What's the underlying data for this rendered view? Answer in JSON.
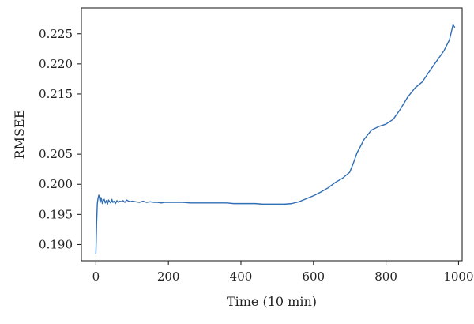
{
  "chart_data": {
    "type": "line",
    "title": "",
    "xlabel": "Time (10 min)",
    "ylabel": "RMSEE",
    "xlim": [
      -40,
      1010
    ],
    "ylim": [
      0.1873,
      0.2293
    ],
    "x_ticks": [
      0,
      200,
      400,
      600,
      800,
      1000
    ],
    "x_tick_labels": [
      "0",
      "200",
      "400",
      "600",
      "800",
      "1000"
    ],
    "y_ticks": [
      0.19,
      0.195,
      0.2,
      0.205,
      0.215,
      0.22,
      0.225
    ],
    "y_tick_labels": [
      "0.190",
      "0.195",
      "0.200",
      "0.205",
      "0.215",
      "0.220",
      "0.225"
    ],
    "grid": false,
    "legend": "none",
    "series": [
      {
        "color": "#2f6db5",
        "points": [
          [
            0,
            0.1884
          ],
          [
            2,
            0.1935
          ],
          [
            4,
            0.1968
          ],
          [
            6,
            0.1977
          ],
          [
            8,
            0.1982
          ],
          [
            10,
            0.1978
          ],
          [
            12,
            0.197
          ],
          [
            14,
            0.1978
          ],
          [
            16,
            0.1974
          ],
          [
            18,
            0.1968
          ],
          [
            20,
            0.1973
          ],
          [
            23,
            0.1975
          ],
          [
            26,
            0.1969
          ],
          [
            29,
            0.1973
          ],
          [
            32,
            0.1967
          ],
          [
            35,
            0.1974
          ],
          [
            38,
            0.1971
          ],
          [
            41,
            0.1969
          ],
          [
            44,
            0.1975
          ],
          [
            47,
            0.197
          ],
          [
            50,
            0.1972
          ],
          [
            54,
            0.1968
          ],
          [
            58,
            0.1973
          ],
          [
            62,
            0.197
          ],
          [
            66,
            0.1972
          ],
          [
            70,
            0.1971
          ],
          [
            75,
            0.1973
          ],
          [
            80,
            0.197
          ],
          [
            85,
            0.1974
          ],
          [
            90,
            0.1972
          ],
          [
            95,
            0.1971
          ],
          [
            100,
            0.1972
          ],
          [
            110,
            0.1971
          ],
          [
            120,
            0.197
          ],
          [
            130,
            0.1972
          ],
          [
            140,
            0.197
          ],
          [
            150,
            0.1971
          ],
          [
            160,
            0.197
          ],
          [
            170,
            0.197
          ],
          [
            180,
            0.1969
          ],
          [
            190,
            0.197
          ],
          [
            200,
            0.197
          ],
          [
            220,
            0.197
          ],
          [
            240,
            0.197
          ],
          [
            260,
            0.1969
          ],
          [
            280,
            0.1969
          ],
          [
            300,
            0.1969
          ],
          [
            320,
            0.1969
          ],
          [
            340,
            0.1969
          ],
          [
            360,
            0.1969
          ],
          [
            380,
            0.1968
          ],
          [
            400,
            0.1968
          ],
          [
            420,
            0.1968
          ],
          [
            440,
            0.1968
          ],
          [
            460,
            0.1967
          ],
          [
            480,
            0.1967
          ],
          [
            500,
            0.1967
          ],
          [
            520,
            0.1967
          ],
          [
            540,
            0.1968
          ],
          [
            560,
            0.1971
          ],
          [
            580,
            0.1976
          ],
          [
            600,
            0.1981
          ],
          [
            620,
            0.1987
          ],
          [
            640,
            0.1994
          ],
          [
            660,
            0.2003
          ],
          [
            680,
            0.201
          ],
          [
            700,
            0.202
          ],
          [
            710,
            0.2035
          ],
          [
            720,
            0.2052
          ],
          [
            740,
            0.2075
          ],
          [
            760,
            0.209
          ],
          [
            780,
            0.2096
          ],
          [
            800,
            0.21
          ],
          [
            820,
            0.2108
          ],
          [
            840,
            0.2125
          ],
          [
            860,
            0.2145
          ],
          [
            880,
            0.216
          ],
          [
            900,
            0.217
          ],
          [
            920,
            0.2188
          ],
          [
            940,
            0.2205
          ],
          [
            960,
            0.2222
          ],
          [
            975,
            0.224
          ],
          [
            985,
            0.2265
          ],
          [
            990,
            0.226
          ]
        ]
      }
    ]
  }
}
